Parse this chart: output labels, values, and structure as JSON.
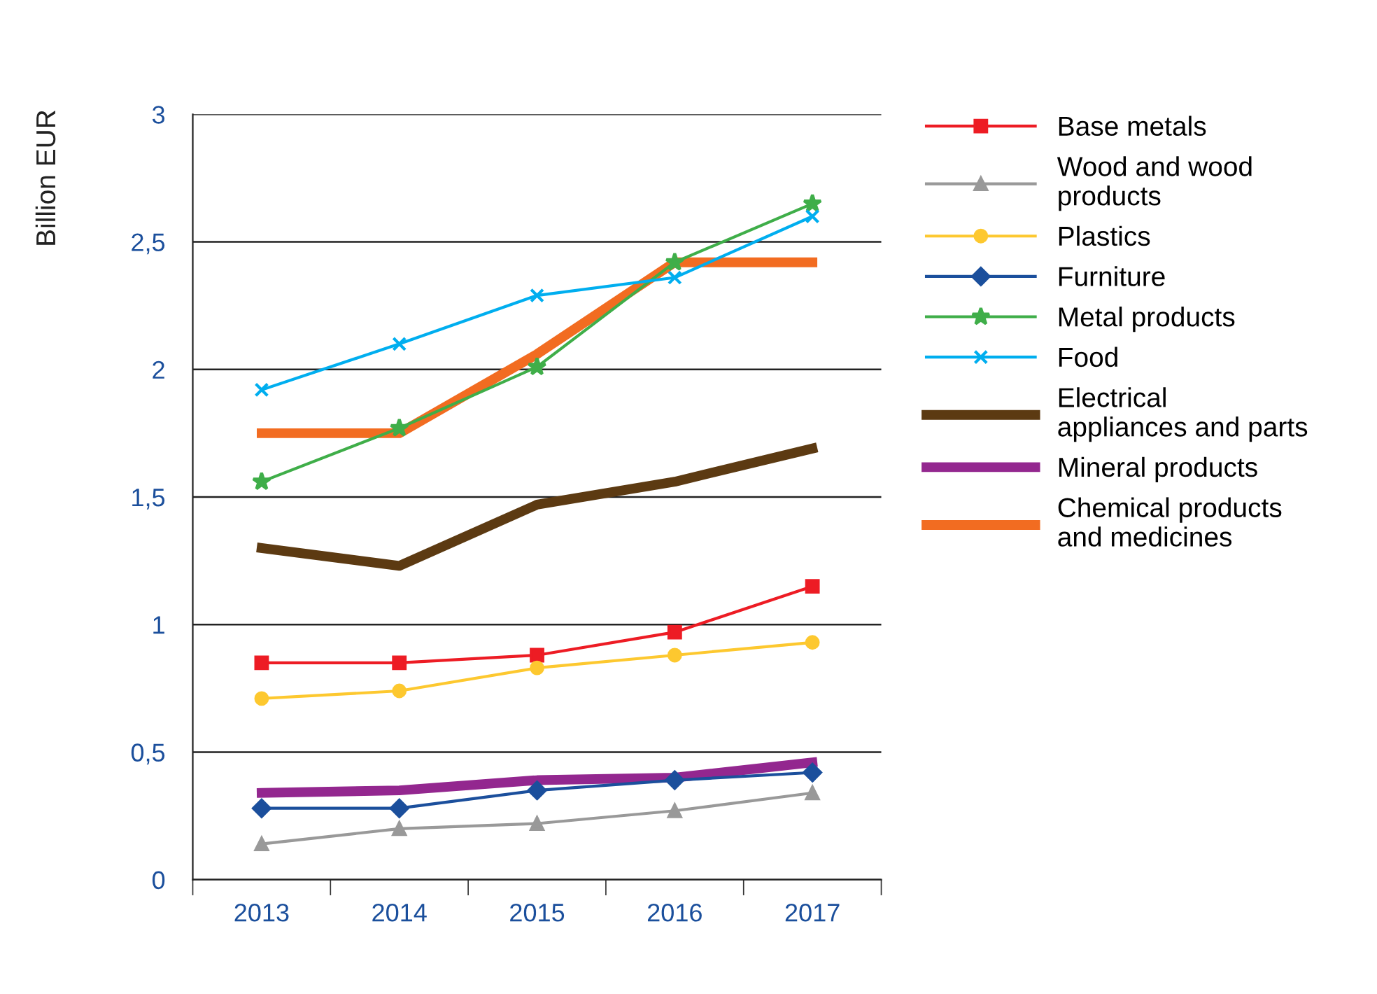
{
  "chart_data": {
    "type": "line",
    "ylabel": "Billion EUR",
    "categories": [
      "2013",
      "2014",
      "2015",
      "2016",
      "2017"
    ],
    "ylim": [
      0,
      3
    ],
    "yticks": [
      0,
      {
        "value": 0.5,
        "label": "0,5"
      },
      1,
      {
        "value": 1.5,
        "label": "1,5"
      },
      2,
      {
        "value": 2.5,
        "label": "2,5"
      },
      3
    ],
    "grid": "y",
    "legend": "right",
    "line_style": "solid",
    "series": [
      {
        "name": "Base metals",
        "color": "#ed1c24",
        "marker": "square",
        "values": [
          0.85,
          0.85,
          0.88,
          0.97,
          1.15
        ]
      },
      {
        "name": "Wood and wood products",
        "color": "#999999",
        "marker": "triangle",
        "values": [
          0.14,
          0.2,
          0.22,
          0.27,
          0.34
        ]
      },
      {
        "name": "Plastics",
        "color": "#fdc82f",
        "marker": "circle",
        "values": [
          0.71,
          0.74,
          0.83,
          0.88,
          0.93
        ]
      },
      {
        "name": "Furniture",
        "color": "#1b4f9c",
        "marker": "diamond",
        "values": [
          0.28,
          0.28,
          0.35,
          0.39,
          0.42
        ]
      },
      {
        "name": "Metal products",
        "color": "#3fae49",
        "marker": "star",
        "values": [
          1.56,
          1.77,
          2.01,
          2.42,
          2.65
        ]
      },
      {
        "name": "Food",
        "color": "#00aeef",
        "marker": "cross",
        "values": [
          1.92,
          2.1,
          2.29,
          2.36,
          2.6
        ]
      },
      {
        "name": "Electrical appliances and parts",
        "color": "#5c3a12",
        "marker": "none",
        "values": [
          1.3,
          1.23,
          1.47,
          1.56,
          1.69
        ]
      },
      {
        "name": "Mineral products",
        "color": "#93278f",
        "marker": "none",
        "values": [
          0.34,
          0.35,
          0.39,
          0.4,
          0.46
        ]
      },
      {
        "name": "Chemical products and medicines",
        "color": "#f26c21",
        "marker": "none",
        "values": [
          1.75,
          1.75,
          2.06,
          2.42,
          2.42
        ]
      }
    ]
  }
}
